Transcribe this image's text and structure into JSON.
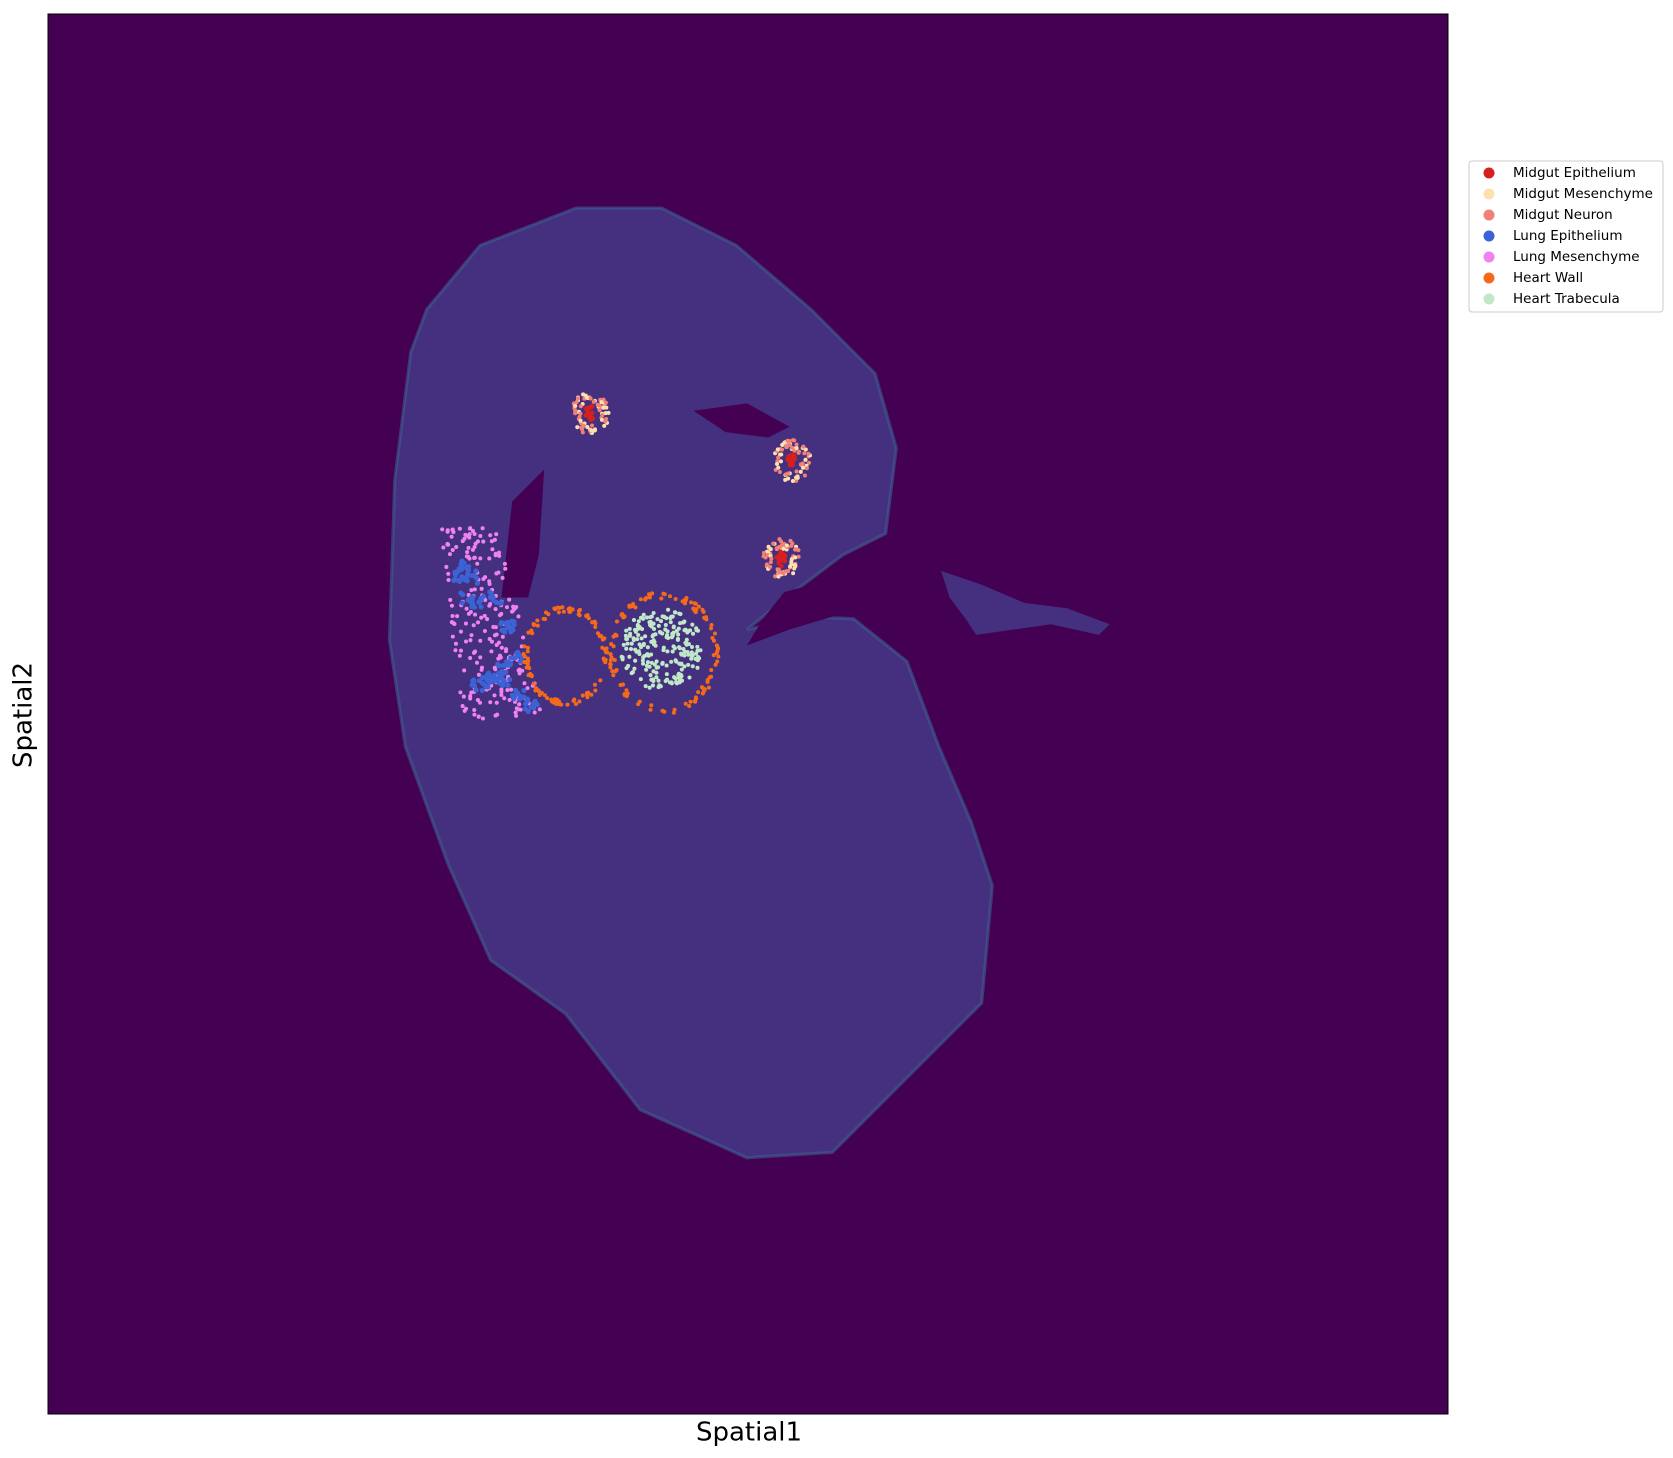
{
  "chart_data": {
    "type": "scatter",
    "xlabel": "Spatial1",
    "ylabel": "Spatial2",
    "background": "#440154",
    "tissue_color": "#44307f",
    "series": [
      {
        "name": "Midgut Epithelium",
        "color": "#d62020"
      },
      {
        "name": "Midgut Mesenchyme",
        "color": "#fde0b0"
      },
      {
        "name": "Midgut Neuron",
        "color": "#f08078"
      },
      {
        "name": "Lung Epithelium",
        "color": "#3b63d6"
      },
      {
        "name": "Lung Mesenchyme",
        "color": "#ee82ee"
      },
      {
        "name": "Heart Wall",
        "color": "#f56a1a"
      },
      {
        "name": "Heart Trabecula",
        "color": "#c0e8c8"
      }
    ]
  }
}
